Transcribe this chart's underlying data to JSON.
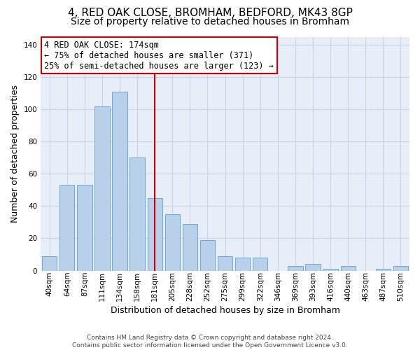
{
  "title": "4, RED OAK CLOSE, BROMHAM, BEDFORD, MK43 8GP",
  "subtitle": "Size of property relative to detached houses in Bromham",
  "xlabel": "Distribution of detached houses by size in Bromham",
  "ylabel": "Number of detached properties",
  "categories": [
    "40sqm",
    "64sqm",
    "87sqm",
    "111sqm",
    "134sqm",
    "158sqm",
    "181sqm",
    "205sqm",
    "228sqm",
    "252sqm",
    "275sqm",
    "299sqm",
    "322sqm",
    "346sqm",
    "369sqm",
    "393sqm",
    "416sqm",
    "440sqm",
    "463sqm",
    "487sqm",
    "510sqm"
  ],
  "bar_vals": [
    9,
    53,
    53,
    102,
    111,
    70,
    45,
    35,
    29,
    19,
    9,
    8,
    8,
    0,
    3,
    4,
    1,
    3,
    0,
    1,
    3
  ],
  "bar_color": "#b8d0ea",
  "bar_edge_color": "#6aaad4",
  "vline_index": 6,
  "vline_color": "#cc0000",
  "annotation_line1": "4 RED OAK CLOSE: 174sqm",
  "annotation_line2": "← 75% of detached houses are smaller (371)",
  "annotation_line3": "25% of semi-detached houses are larger (123) →",
  "annotation_box_facecolor": "#ffffff",
  "annotation_box_edgecolor": "#cc0000",
  "ylim": [
    0,
    145
  ],
  "yticks": [
    0,
    20,
    40,
    60,
    80,
    100,
    120,
    140
  ],
  "footer_line1": "Contains HM Land Registry data © Crown copyright and database right 2024.",
  "footer_line2": "Contains public sector information licensed under the Open Government Licence v3.0.",
  "bg_color": "#ffffff",
  "plot_bg_color": "#e8eef8",
  "grid_color": "#c8d4e8",
  "title_fontsize": 11,
  "subtitle_fontsize": 10,
  "ylabel_fontsize": 9,
  "xlabel_fontsize": 9,
  "tick_fontsize": 7.5,
  "annotation_fontsize": 8.5
}
